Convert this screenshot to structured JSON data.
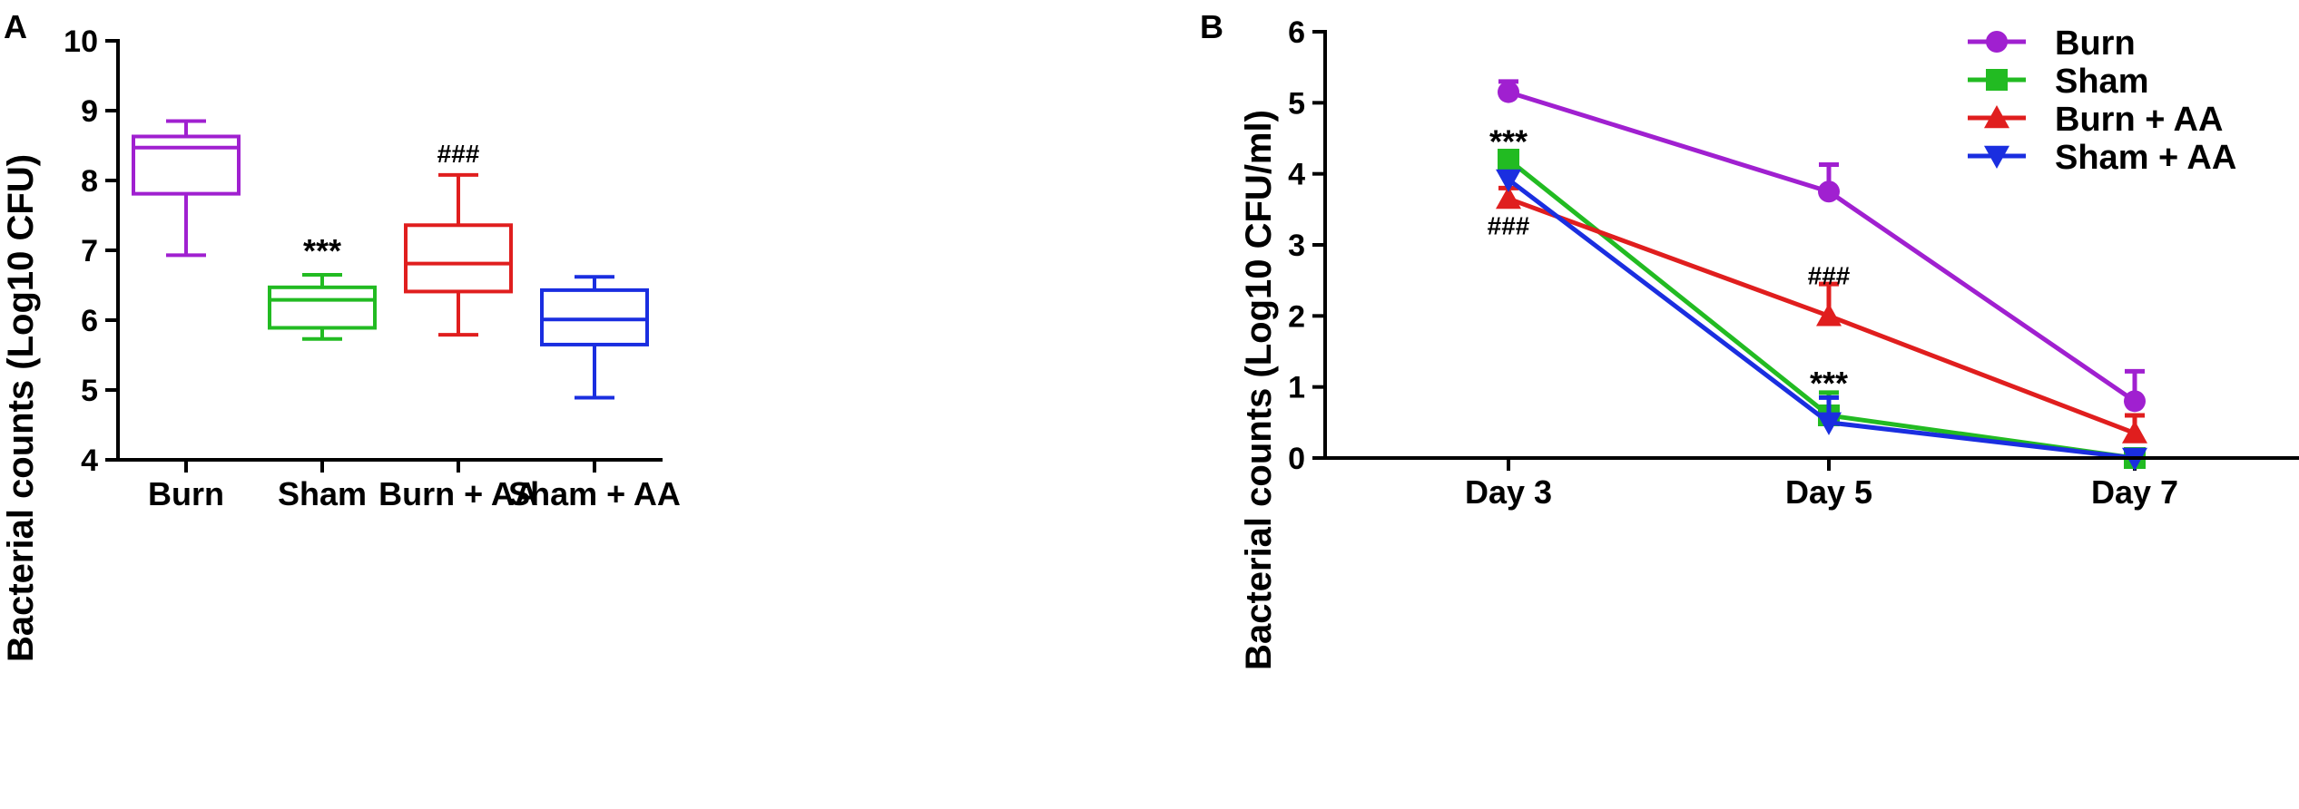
{
  "chart_data": [
    {
      "type": "box",
      "panel_label": "A",
      "ylabel": "Bacterial counts (Log10 CFU)",
      "xlabel": "",
      "ylim": [
        4,
        10
      ],
      "yticks": [
        "4",
        "5",
        "6",
        "7",
        "8",
        "9",
        "10"
      ],
      "categories": [
        "Burn",
        "Sham",
        "Burn + AA",
        "Sham + AA"
      ],
      "colors": [
        "#a020d0",
        "#22bb22",
        "#e01e1e",
        "#1a2ee0"
      ],
      "boxes": [
        {
          "name": "Burn",
          "min": 6.93,
          "q1": 7.81,
          "median": 8.47,
          "q3": 8.63,
          "max": 8.85,
          "annotation": ""
        },
        {
          "name": "Sham",
          "min": 5.73,
          "q1": 5.89,
          "median": 6.29,
          "q3": 6.47,
          "max": 6.65,
          "annotation": "***"
        },
        {
          "name": "Burn + AA",
          "min": 5.79,
          "q1": 6.41,
          "median": 6.81,
          "q3": 7.36,
          "max": 8.08,
          "annotation": "###"
        },
        {
          "name": "Sham + AA",
          "min": 4.89,
          "q1": 5.65,
          "median": 6.01,
          "q3": 6.43,
          "max": 6.62,
          "annotation": ""
        }
      ]
    },
    {
      "type": "line",
      "panel_label": "B",
      "ylabel": "Bacterial counts (Log10 CFU/ml)",
      "xlabel": "",
      "ylim": [
        0,
        6
      ],
      "yticks": [
        "0",
        "1",
        "2",
        "3",
        "4",
        "5",
        "6"
      ],
      "categories": [
        "Day 3",
        "Day 5",
        "Day 7"
      ],
      "legend_position": "top-right",
      "series": [
        {
          "name": "Burn",
          "color": "#a020d0",
          "marker": "circle",
          "values": [
            5.15,
            3.75,
            0.8
          ],
          "errors": [
            0.15,
            0.38,
            0.42
          ]
        },
        {
          "name": "Sham",
          "color": "#22bb22",
          "marker": "square",
          "values": [
            4.2,
            0.6,
            0.0
          ],
          "errors": [
            0.0,
            0.32,
            0.0
          ]
        },
        {
          "name": "Burn + AA",
          "color": "#e01e1e",
          "marker": "triangle-up",
          "values": [
            3.65,
            2.0,
            0.35
          ],
          "errors": [
            0.15,
            0.45,
            0.25
          ]
        },
        {
          "name": "Sham + AA",
          "color": "#1a2ee0",
          "marker": "triangle-down",
          "values": [
            3.92,
            0.5,
            0.0
          ],
          "errors": [
            0.0,
            0.35,
            0.0
          ]
        }
      ],
      "annotations": [
        {
          "text": "***",
          "category": "Day 3",
          "value": 4.45
        },
        {
          "text": "###",
          "category": "Day 3",
          "value": 3.3
        },
        {
          "text": "###",
          "category": "Day 5",
          "value": 2.6
        },
        {
          "text": "***",
          "category": "Day 5",
          "value": 1.05
        }
      ]
    }
  ]
}
